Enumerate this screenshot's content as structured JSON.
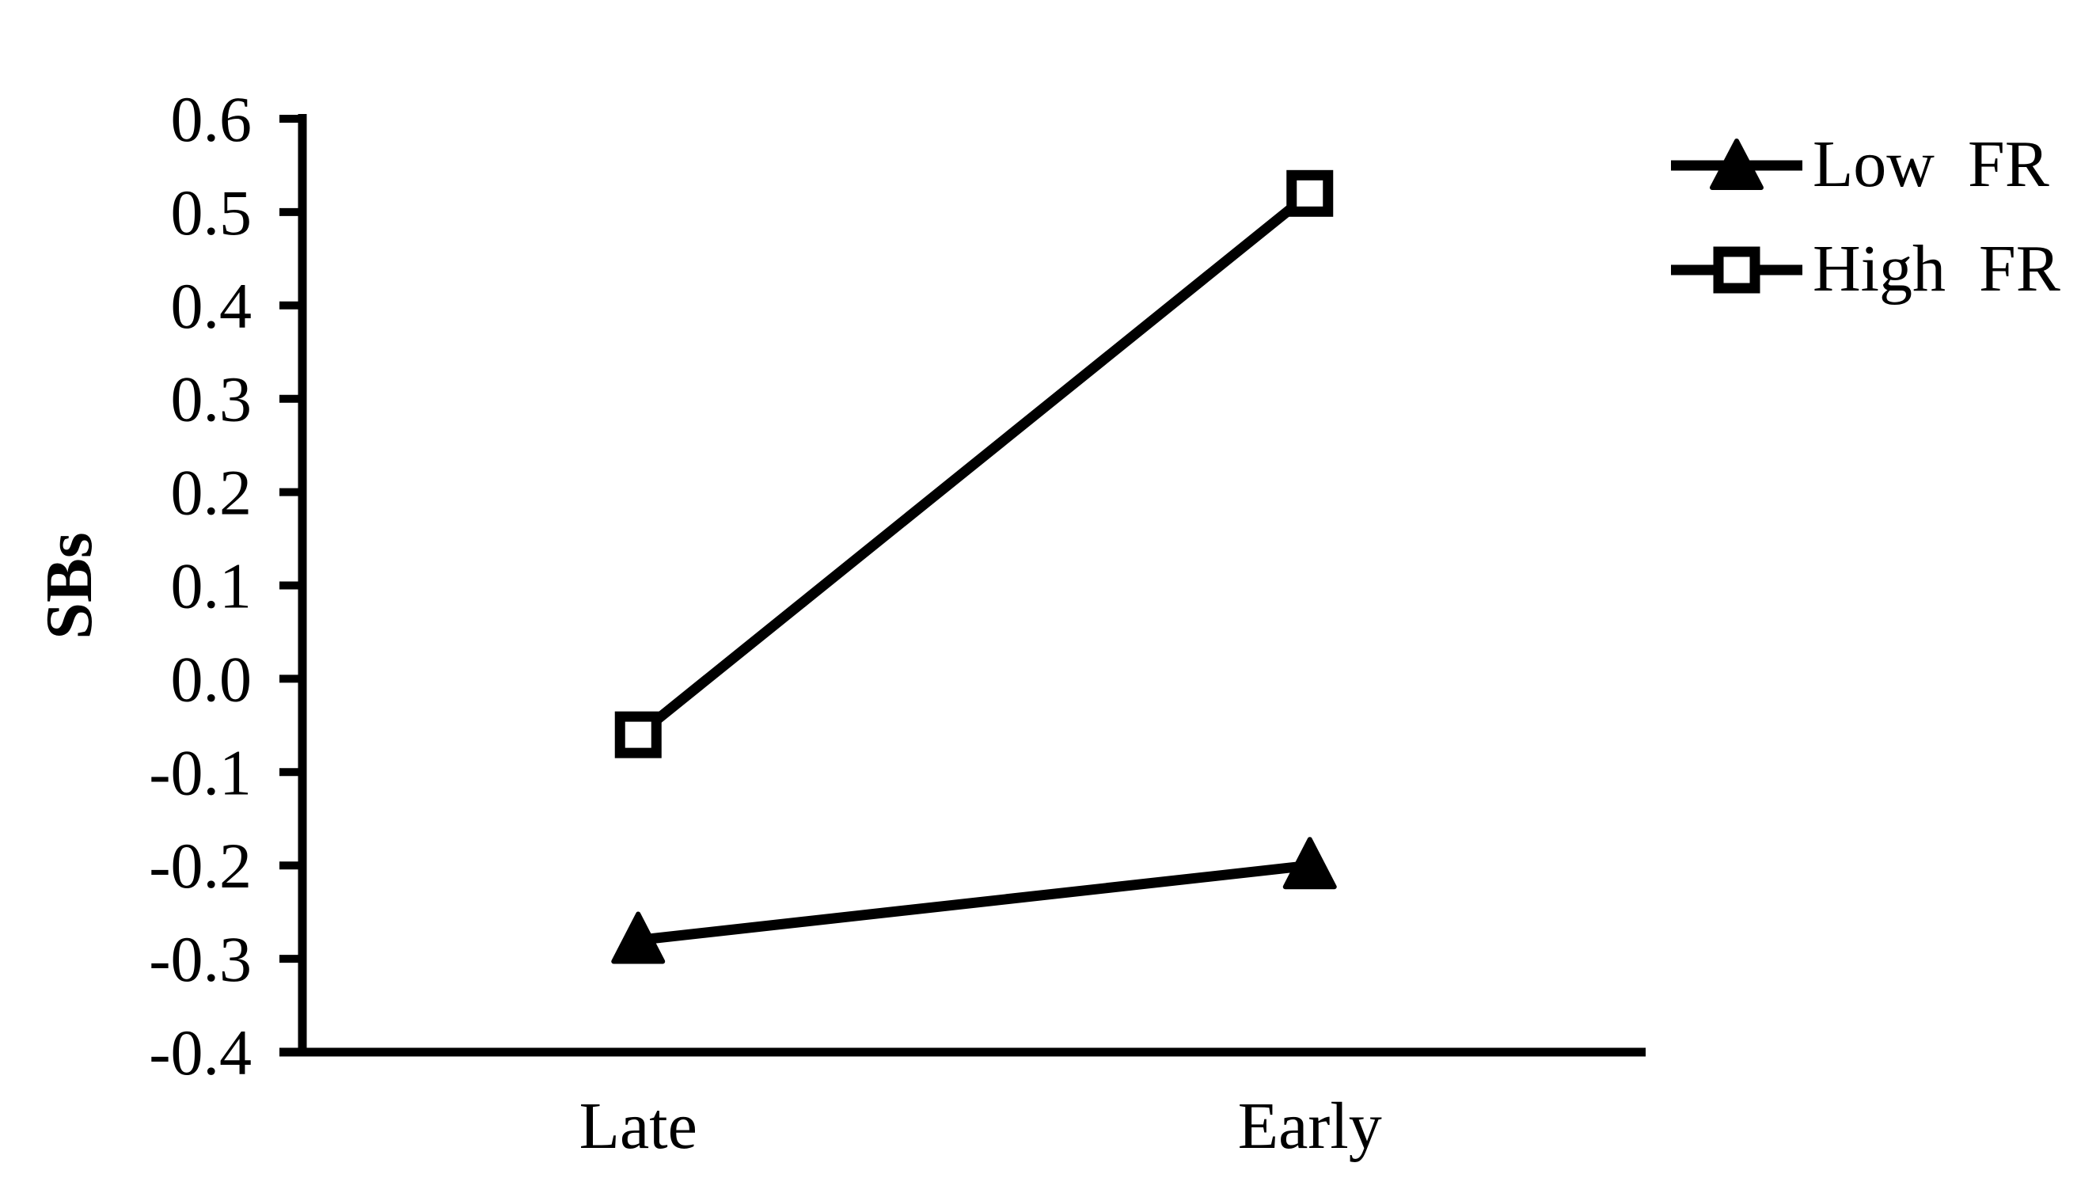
{
  "figure": {
    "background_color": "#ffffff",
    "ink_color": "#000000"
  },
  "chart_data": {
    "type": "line",
    "title": "",
    "xlabel": "",
    "ylabel": "SBs",
    "categories": [
      "Late",
      "Early"
    ],
    "series": [
      {
        "name": "Low FR",
        "legend_label": "Low  FR",
        "marker": "filled-triangle",
        "color": "#000000",
        "values": [
          -0.28,
          -0.2
        ]
      },
      {
        "name": "High FR",
        "legend_label": "High  FR",
        "marker": "open-square",
        "color": "#000000",
        "values": [
          -0.06,
          0.52
        ]
      }
    ],
    "ylim": [
      -0.4,
      0.6
    ],
    "ytick_step": 0.1,
    "ytick_labels": [
      "0.6",
      "0.5",
      "0.4",
      "0.3",
      "0.2",
      "0.1",
      "0.0",
      "-0.1",
      "-0.2",
      "-0.3",
      "-0.4"
    ],
    "grid": false,
    "legend_position": "outside-upper-right"
  }
}
